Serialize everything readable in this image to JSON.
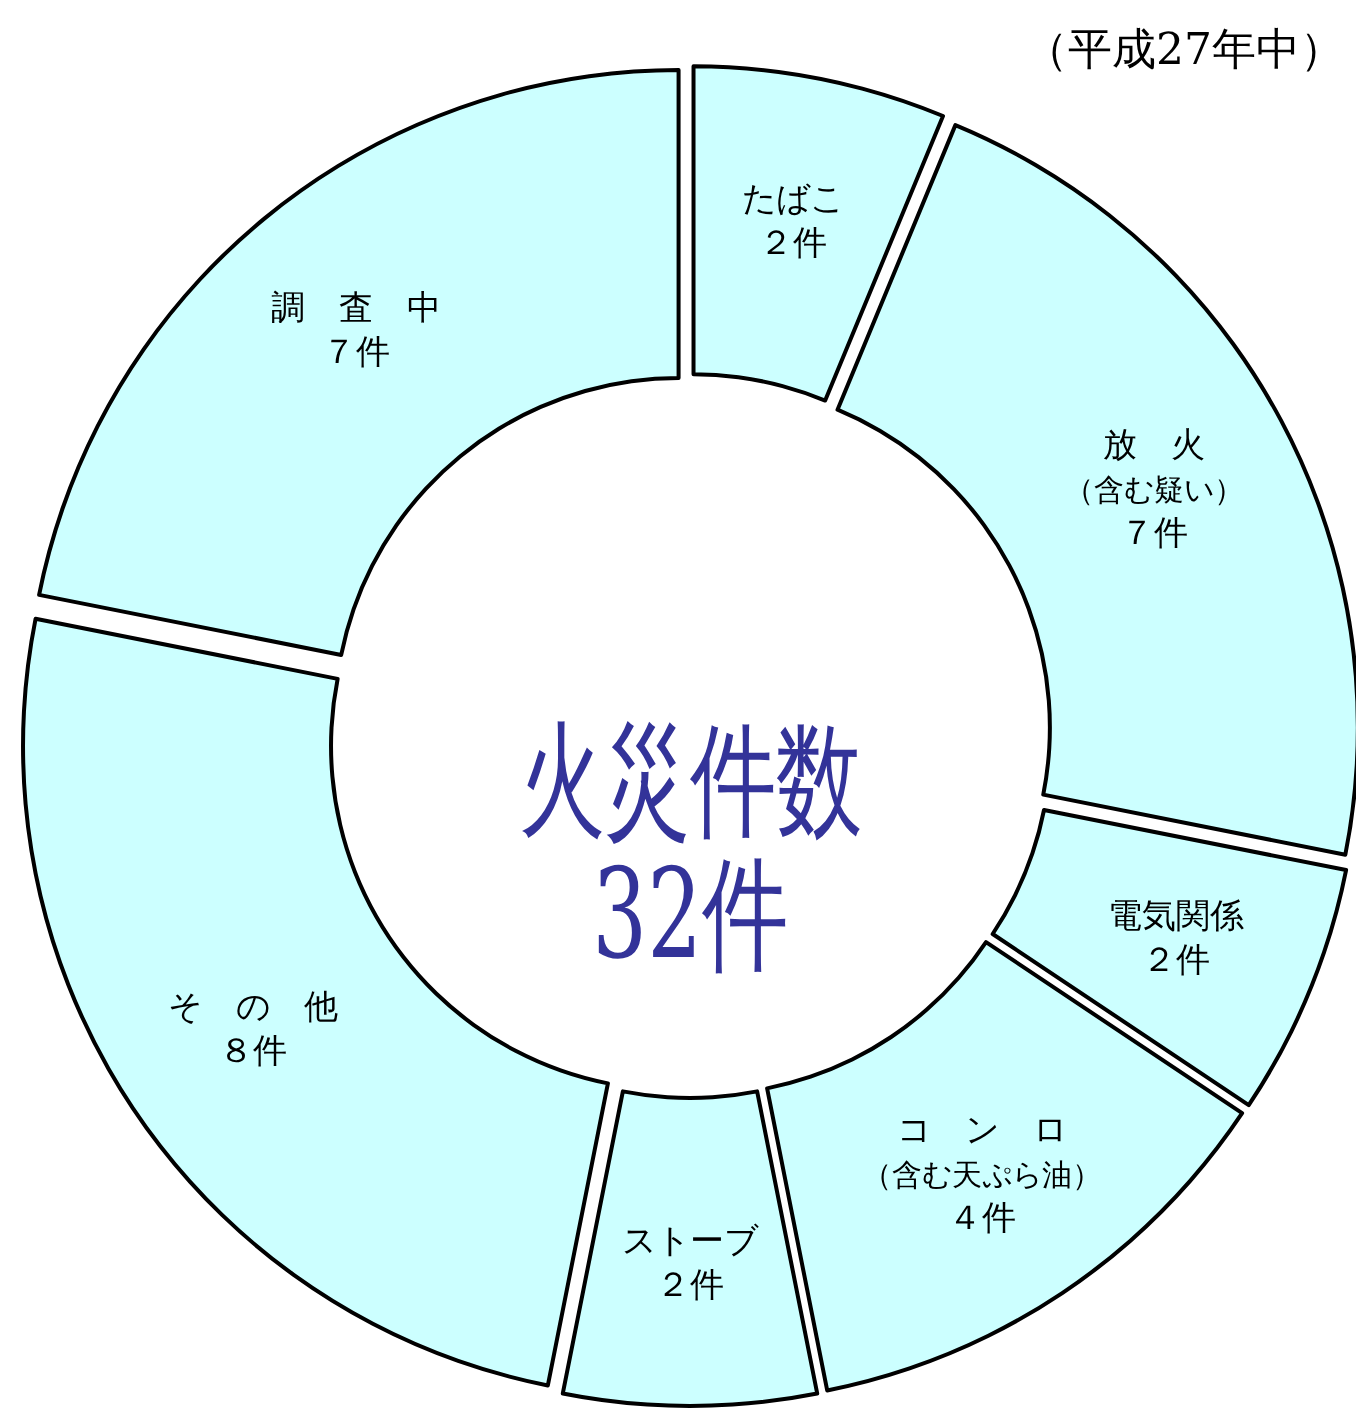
{
  "chart_data": {
    "type": "donut",
    "title": "火災件数",
    "subtitle": "32件",
    "categories": [
      "たばこ",
      "放　火（含む疑い）",
      "電気関係",
      "コ　ン　ロ（含む天ぷら油）",
      "ストーブ",
      "そ　の　他",
      "調　査　中"
    ],
    "values": [
      2,
      7,
      2,
      4,
      2,
      8,
      7
    ],
    "value_labels": [
      "２件",
      "７件",
      "２件",
      "４件",
      "２件",
      "８件",
      "７件"
    ],
    "colors": [
      "#ccffff",
      "#ccffff",
      "#ccffff",
      "#ccffff",
      "#ccffff",
      "#ccffff",
      "#ccffff"
    ],
    "annotations": [
      "（平成27年中）"
    ]
  }
}
